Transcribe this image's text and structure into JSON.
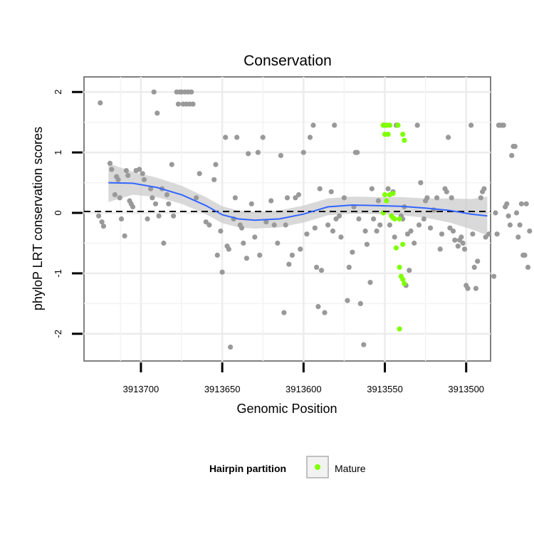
{
  "chart_data": {
    "type": "scatter",
    "title": "Conservation",
    "xlabel": "Genomic Position",
    "ylabel": "phyloP LRT conservation scores",
    "x_reversed": true,
    "xlim": [
      3913735,
      3913485
    ],
    "ylim": [
      -2.45,
      2.25
    ],
    "x_ticks": [
      3913700,
      3913650,
      3913600,
      3913550,
      3913500
    ],
    "x_tick_labels": [
      "3913700",
      "3913650",
      "3913600",
      "3913550",
      "3913500"
    ],
    "y_ticks": [
      -2,
      -1,
      0,
      1,
      2
    ],
    "y_tick_labels": [
      "-2",
      "-1",
      "0",
      "1",
      "2"
    ],
    "grid": true,
    "reference_line": {
      "y": 0,
      "style": "dashed",
      "color": "#000000"
    },
    "legend": {
      "title": "Hairpin partition",
      "position": "bottom",
      "entries": [
        {
          "label": "Mature",
          "color": "#7fff00"
        }
      ]
    },
    "smooth": {
      "color": "#3366ff",
      "band_color": "#cccccc",
      "points": [
        {
          "x": 3913720,
          "y": 0.5,
          "lo": 0.18,
          "hi": 0.82
        },
        {
          "x": 3913705,
          "y": 0.49,
          "lo": 0.3,
          "hi": 0.68
        },
        {
          "x": 3913690,
          "y": 0.42,
          "lo": 0.26,
          "hi": 0.58
        },
        {
          "x": 3913675,
          "y": 0.3,
          "lo": 0.15,
          "hi": 0.45
        },
        {
          "x": 3913660,
          "y": 0.12,
          "lo": -0.02,
          "hi": 0.26
        },
        {
          "x": 3913650,
          "y": -0.03,
          "lo": -0.17,
          "hi": 0.11
        },
        {
          "x": 3913640,
          "y": -0.1,
          "lo": -0.24,
          "hi": 0.04
        },
        {
          "x": 3913630,
          "y": -0.12,
          "lo": -0.26,
          "hi": 0.02
        },
        {
          "x": 3913615,
          "y": -0.1,
          "lo": -0.24,
          "hi": 0.04
        },
        {
          "x": 3913600,
          "y": -0.02,
          "lo": -0.16,
          "hi": 0.12
        },
        {
          "x": 3913585,
          "y": 0.1,
          "lo": -0.04,
          "hi": 0.24
        },
        {
          "x": 3913570,
          "y": 0.13,
          "lo": -0.01,
          "hi": 0.27
        },
        {
          "x": 3913555,
          "y": 0.12,
          "lo": -0.02,
          "hi": 0.26
        },
        {
          "x": 3913540,
          "y": 0.11,
          "lo": -0.04,
          "hi": 0.26
        },
        {
          "x": 3913525,
          "y": 0.08,
          "lo": -0.08,
          "hi": 0.24
        },
        {
          "x": 3913510,
          "y": 0.04,
          "lo": -0.16,
          "hi": 0.24
        },
        {
          "x": 3913497,
          "y": -0.02,
          "lo": -0.27,
          "hi": 0.23
        },
        {
          "x": 3913487,
          "y": -0.05,
          "lo": -0.37,
          "hi": 0.27
        }
      ]
    },
    "series": [
      {
        "color": "#999999",
        "points": [
          [
            3913725,
            1.82
          ],
          [
            3913726,
            -0.05
          ],
          [
            3913724,
            -0.15
          ],
          [
            3913723,
            -0.22
          ],
          [
            3913719,
            0.82
          ],
          [
            3913718,
            0.72
          ],
          [
            3913715,
            0.6
          ],
          [
            3913714,
            0.55
          ],
          [
            3913716,
            0.3
          ],
          [
            3913713,
            0.25
          ],
          [
            3913712,
            -0.1
          ],
          [
            3913710,
            -0.38
          ],
          [
            3913709,
            0.7
          ],
          [
            3913708,
            0.62
          ],
          [
            3913706,
            0.15
          ],
          [
            3913705,
            0.1
          ],
          [
            3913707,
            0.2
          ],
          [
            3913703,
            0.7
          ],
          [
            3913701,
            0.72
          ],
          [
            3913699,
            0.65
          ],
          [
            3913698,
            0.55
          ],
          [
            3913696,
            -0.1
          ],
          [
            3913694,
            0.4
          ],
          [
            3913692,
            2.0
          ],
          [
            3913690,
            1.65
          ],
          [
            3913693,
            0.25
          ],
          [
            3913691,
            0.15
          ],
          [
            3913689,
            -0.05
          ],
          [
            3913687,
            0.4
          ],
          [
            3913686,
            -0.5
          ],
          [
            3913684,
            0.3
          ],
          [
            3913683,
            0.15
          ],
          [
            3913681,
            0.8
          ],
          [
            3913680,
            -0.05
          ],
          [
            3913678,
            2.0
          ],
          [
            3913677,
            1.8
          ],
          [
            3913676,
            2.0
          ],
          [
            3913675,
            2.0
          ],
          [
            3913674,
            1.8
          ],
          [
            3913673,
            2.0
          ],
          [
            3913672,
            1.8
          ],
          [
            3913671,
            2.0
          ],
          [
            3913670,
            1.8
          ],
          [
            3913669,
            2.0
          ],
          [
            3913668,
            1.8
          ],
          [
            3913666,
            0.25
          ],
          [
            3913664,
            0.65
          ],
          [
            3913660,
            -0.15
          ],
          [
            3913658,
            -0.2
          ],
          [
            3913655,
            0.55
          ],
          [
            3913654,
            0.8
          ],
          [
            3913653,
            -0.7
          ],
          [
            3913651,
            -0.3
          ],
          [
            3913650,
            -0.98
          ],
          [
            3913648,
            1.25
          ],
          [
            3913647,
            -0.55
          ],
          [
            3913646,
            -0.6
          ],
          [
            3913645,
            -2.22
          ],
          [
            3913643,
            -0.1
          ],
          [
            3913642,
            0.25
          ],
          [
            3913641,
            1.25
          ],
          [
            3913639,
            -0.2
          ],
          [
            3913638,
            -0.25
          ],
          [
            3913637,
            -0.5
          ],
          [
            3913635,
            -0.75
          ],
          [
            3913634,
            0.98
          ],
          [
            3913632,
            0.15
          ],
          [
            3913630,
            -0.4
          ],
          [
            3913628,
            1.0
          ],
          [
            3913627,
            -0.7
          ],
          [
            3913625,
            1.25
          ],
          [
            3913623,
            -0.15
          ],
          [
            3913620,
            0.2
          ],
          [
            3913618,
            -0.2
          ],
          [
            3913616,
            -0.5
          ],
          [
            3913614,
            0.95
          ],
          [
            3913612,
            -1.65
          ],
          [
            3913611,
            -0.2
          ],
          [
            3913610,
            0.25
          ],
          [
            3913609,
            -0.85
          ],
          [
            3913607,
            -0.7
          ],
          [
            3913605,
            0.25
          ],
          [
            3913603,
            0.3
          ],
          [
            3913602,
            -0.6
          ],
          [
            3913600,
            1.0
          ],
          [
            3913598,
            -0.35
          ],
          [
            3913596,
            1.25
          ],
          [
            3913594,
            1.45
          ],
          [
            3913593,
            -0.25
          ],
          [
            3913592,
            -0.9
          ],
          [
            3913591,
            -1.55
          ],
          [
            3913590,
            0.4
          ],
          [
            3913589,
            -0.95
          ],
          [
            3913587,
            -1.65
          ],
          [
            3913585,
            -0.2
          ],
          [
            3913583,
            0.35
          ],
          [
            3913582,
            -0.3
          ],
          [
            3913581,
            1.45
          ],
          [
            3913580,
            -0.1
          ],
          [
            3913578,
            -0.05
          ],
          [
            3913577,
            -0.4
          ],
          [
            3913575,
            0.25
          ],
          [
            3913573,
            -1.45
          ],
          [
            3913572,
            -0.9
          ],
          [
            3913570,
            -0.65
          ],
          [
            3913569,
            0.1
          ],
          [
            3913568,
            1.0
          ],
          [
            3913567,
            1.0
          ],
          [
            3913566,
            -0.1
          ],
          [
            3913565,
            -1.5
          ],
          [
            3913563,
            -2.18
          ],
          [
            3913562,
            -0.3
          ],
          [
            3913561,
            -0.52
          ],
          [
            3913559,
            -1.15
          ],
          [
            3913558,
            0.4
          ],
          [
            3913557,
            -0.1
          ],
          [
            3913555,
            -0.3
          ],
          [
            3913554,
            0.2
          ],
          [
            3913553,
            -0.2
          ],
          [
            3913551,
            1.45
          ],
          [
            3913550,
            1.45
          ],
          [
            3913548,
            0.4
          ],
          [
            3913547,
            -0.2
          ],
          [
            3913545,
            0.35
          ],
          [
            3913544,
            -0.4
          ],
          [
            3913543,
            1.45
          ],
          [
            3913542,
            1.45
          ],
          [
            3913540,
            -0.05
          ],
          [
            3913539,
            -0.1
          ],
          [
            3913538,
            0.1
          ],
          [
            3913537,
            -1.2
          ],
          [
            3913536,
            -0.35
          ],
          [
            3913535,
            -0.95
          ],
          [
            3913534,
            -0.3
          ],
          [
            3913532,
            -0.5
          ],
          [
            3913530,
            1.45
          ],
          [
            3913529,
            -0.2
          ],
          [
            3913528,
            0.5
          ],
          [
            3913526,
            -0.1
          ],
          [
            3913525,
            0.2
          ],
          [
            3913524,
            0.25
          ],
          [
            3913522,
            -0.25
          ],
          [
            3913520,
            0.05
          ],
          [
            3913518,
            0.25
          ],
          [
            3913516,
            -0.6
          ],
          [
            3913515,
            -0.35
          ],
          [
            3913513,
            0.4
          ],
          [
            3913512,
            0.35
          ],
          [
            3913511,
            1.25
          ],
          [
            3913510,
            -0.25
          ],
          [
            3913509,
            0.25
          ],
          [
            3913508,
            -0.3
          ],
          [
            3913507,
            -0.45
          ],
          [
            3913505,
            -0.55
          ],
          [
            3913504,
            -0.45
          ],
          [
            3913503,
            -0.4
          ],
          [
            3913502,
            -0.5
          ],
          [
            3913501,
            -0.6
          ],
          [
            3913500,
            -1.2
          ],
          [
            3913499,
            -1.25
          ],
          [
            3913497,
            1.45
          ],
          [
            3913496,
            -0.35
          ],
          [
            3913495,
            -0.9
          ],
          [
            3913494,
            -1.25
          ],
          [
            3913493,
            -0.8
          ],
          [
            3913491,
            0.25
          ],
          [
            3913490,
            0.35
          ],
          [
            3913489,
            0.4
          ],
          [
            3913488,
            -0.4
          ],
          [
            3913486,
            -0.35
          ],
          [
            3913483,
            -1.05
          ],
          [
            3913482,
            0.0
          ],
          [
            3913481,
            -0.35
          ],
          [
            3913480,
            1.45
          ],
          [
            3913479,
            1.45
          ],
          [
            3913478,
            1.45
          ],
          [
            3913477,
            1.45
          ],
          [
            3913476,
            0.1
          ],
          [
            3913475,
            0.15
          ],
          [
            3913474,
            -0.05
          ],
          [
            3913473,
            -0.2
          ],
          [
            3913472,
            0.95
          ],
          [
            3913471,
            1.1
          ],
          [
            3913470,
            1.1
          ],
          [
            3913469,
            0.0
          ],
          [
            3913468,
            -0.4
          ],
          [
            3913467,
            -0.2
          ],
          [
            3913466,
            0.15
          ],
          [
            3913465,
            -0.7
          ],
          [
            3913464,
            -0.7
          ],
          [
            3913463,
            0.15
          ],
          [
            3913462,
            -0.9
          ],
          [
            3913461,
            -0.3
          ]
        ]
      },
      {
        "name": "Mature",
        "color": "#7fff00",
        "points": [
          [
            3913551,
            1.45
          ],
          [
            3913550,
            1.3
          ],
          [
            3913549,
            1.45
          ],
          [
            3913548,
            1.3
          ],
          [
            3913547,
            1.45
          ],
          [
            3913542,
            1.45
          ],
          [
            3913539,
            1.3
          ],
          [
            3913538,
            1.2
          ],
          [
            3913550,
            0.3
          ],
          [
            3913549,
            0.2
          ],
          [
            3913547,
            0.3
          ],
          [
            3913545,
            0.32
          ],
          [
            3913551,
            0.0
          ],
          [
            3913546,
            -0.05
          ],
          [
            3913544,
            -0.1
          ],
          [
            3913543,
            -0.58
          ],
          [
            3913541,
            -0.9
          ],
          [
            3913540,
            -1.05
          ],
          [
            3913539,
            -1.1
          ],
          [
            3913538,
            -1.17
          ],
          [
            3913541,
            -1.92
          ],
          [
            3913539,
            -0.52
          ],
          [
            3913541,
            -0.1
          ],
          [
            3913545,
            -0.08
          ]
        ]
      }
    ]
  }
}
